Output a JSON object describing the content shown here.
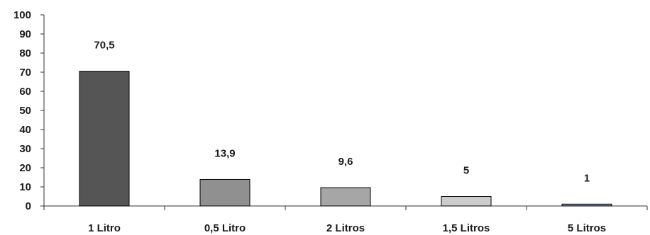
{
  "chart_data": {
    "type": "bar",
    "title": "",
    "xlabel": "",
    "ylabel": "",
    "categories": [
      "1 Litro",
      "0,5 Litro",
      "2 Litros",
      "1,5 Litros",
      "5 Litros"
    ],
    "values": [
      70.5,
      13.9,
      9.6,
      5,
      1
    ],
    "data_labels": [
      "70,5",
      "13,9",
      "9,6",
      "5",
      "1"
    ],
    "bar_colors": [
      "#555555",
      "#909090",
      "#a6a6a6",
      "#cccccc",
      "#7f86aa"
    ],
    "ylim": [
      0,
      100
    ],
    "yticks": [
      0,
      10,
      20,
      30,
      40,
      50,
      60,
      70,
      80,
      90,
      100
    ],
    "ytick_labels": [
      "0",
      "10",
      "20",
      "30",
      "40",
      "50",
      "60",
      "70",
      "80",
      "90",
      "100"
    ],
    "grid": false,
    "legend": "none"
  }
}
